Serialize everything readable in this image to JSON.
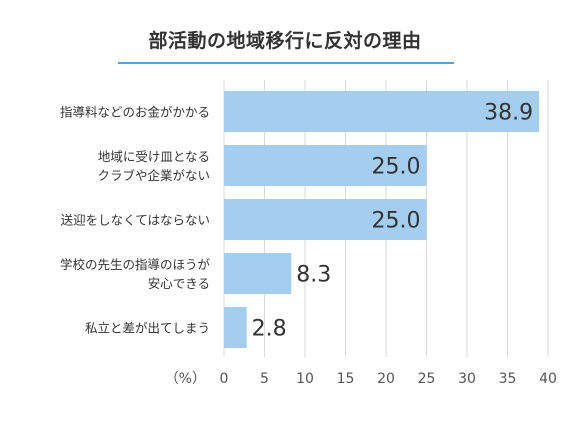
{
  "chart_data": {
    "type": "bar",
    "orientation": "horizontal",
    "title": "部活動の地域移行に反対の理由",
    "unit": "（%）",
    "categories": [
      [
        "指導料などのお金がかかる"
      ],
      [
        "地域に受け皿となる",
        "クラブや企業がない"
      ],
      [
        "送迎をしなくてはならない"
      ],
      [
        "学校の先生の指導のほうが",
        "安心できる"
      ],
      [
        "私立と差が出てしまう"
      ]
    ],
    "values": [
      38.9,
      25.0,
      25.0,
      8.3,
      2.8
    ],
    "value_labels": [
      "38.9",
      "25.0",
      "25.0",
      "8.3",
      "2.8"
    ],
    "xlim": [
      0,
      40
    ],
    "xticks": [
      "0",
      "5",
      "10",
      "15",
      "20",
      "25",
      "30",
      "35",
      "40"
    ],
    "grid": "vertical",
    "colors": {
      "bar": "#a4cdf0",
      "grid": "#d9d9d9",
      "title_rule": "#5aa0d6"
    }
  }
}
